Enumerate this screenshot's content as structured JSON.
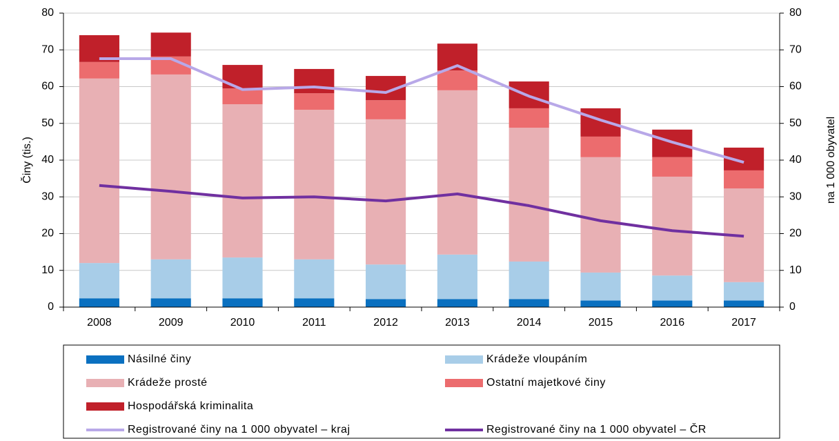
{
  "chart_data": {
    "type": "bar",
    "stacked": true,
    "grid": true,
    "y_label": "Činy (tis.)",
    "y2_label": "na 1 000 obyvatel",
    "categories": [
      "2008",
      "2009",
      "2010",
      "2011",
      "2012",
      "2013",
      "2014",
      "2015",
      "2016",
      "2017"
    ],
    "ylim": [
      0,
      80
    ],
    "yticks": [
      0,
      10,
      20,
      30,
      40,
      50,
      60,
      70,
      80
    ],
    "y2lim": [
      0,
      80
    ],
    "y2ticks": [
      0,
      10,
      20,
      30,
      40,
      50,
      60,
      70,
      80
    ],
    "legend": "bottom",
    "series": [
      {
        "name": "Násilné činy",
        "color": "#0a70c0",
        "values": [
          2.4,
          2.4,
          2.4,
          2.4,
          2.2,
          2.2,
          2.2,
          1.8,
          1.8,
          1.8
        ]
      },
      {
        "name": "Krádeže vloupáním",
        "color": "#a8cde8",
        "values": [
          9.6,
          10.6,
          11.1,
          10.6,
          9.4,
          12.1,
          10.2,
          7.6,
          6.8,
          5.0
        ]
      },
      {
        "name": "Krádeže prosté",
        "color": "#e8b0b4",
        "values": [
          50.2,
          50.3,
          41.7,
          40.7,
          39.5,
          44.7,
          36.4,
          31.4,
          26.9,
          25.5
        ]
      },
      {
        "name": "Ostatní majetkové činy",
        "color": "#ec6c6e",
        "values": [
          4.5,
          4.9,
          4.3,
          4.5,
          5.2,
          5.4,
          5.3,
          5.6,
          5.3,
          4.9
        ]
      },
      {
        "name": "Hospodářská kriminalita",
        "color": "#c0202a",
        "values": [
          7.3,
          6.5,
          6.4,
          6.6,
          6.6,
          7.3,
          7.3,
          7.7,
          7.5,
          6.2
        ]
      },
      {
        "name": "Registrované činy na 1 000 obyvatel – kraj",
        "color": "#b8a8e8",
        "type": "line",
        "axis": "y2",
        "values": [
          67.6,
          67.6,
          59.2,
          59.9,
          58.4,
          65.7,
          57.4,
          50.9,
          44.9,
          39.4
        ]
      },
      {
        "name": "Registrované činy na 1 000 obyvatel – ČR",
        "color": "#7030a0",
        "type": "line",
        "axis": "y2",
        "values": [
          33.1,
          31.5,
          29.7,
          30.0,
          28.9,
          30.8,
          27.6,
          23.5,
          20.8,
          19.3
        ]
      }
    ]
  }
}
